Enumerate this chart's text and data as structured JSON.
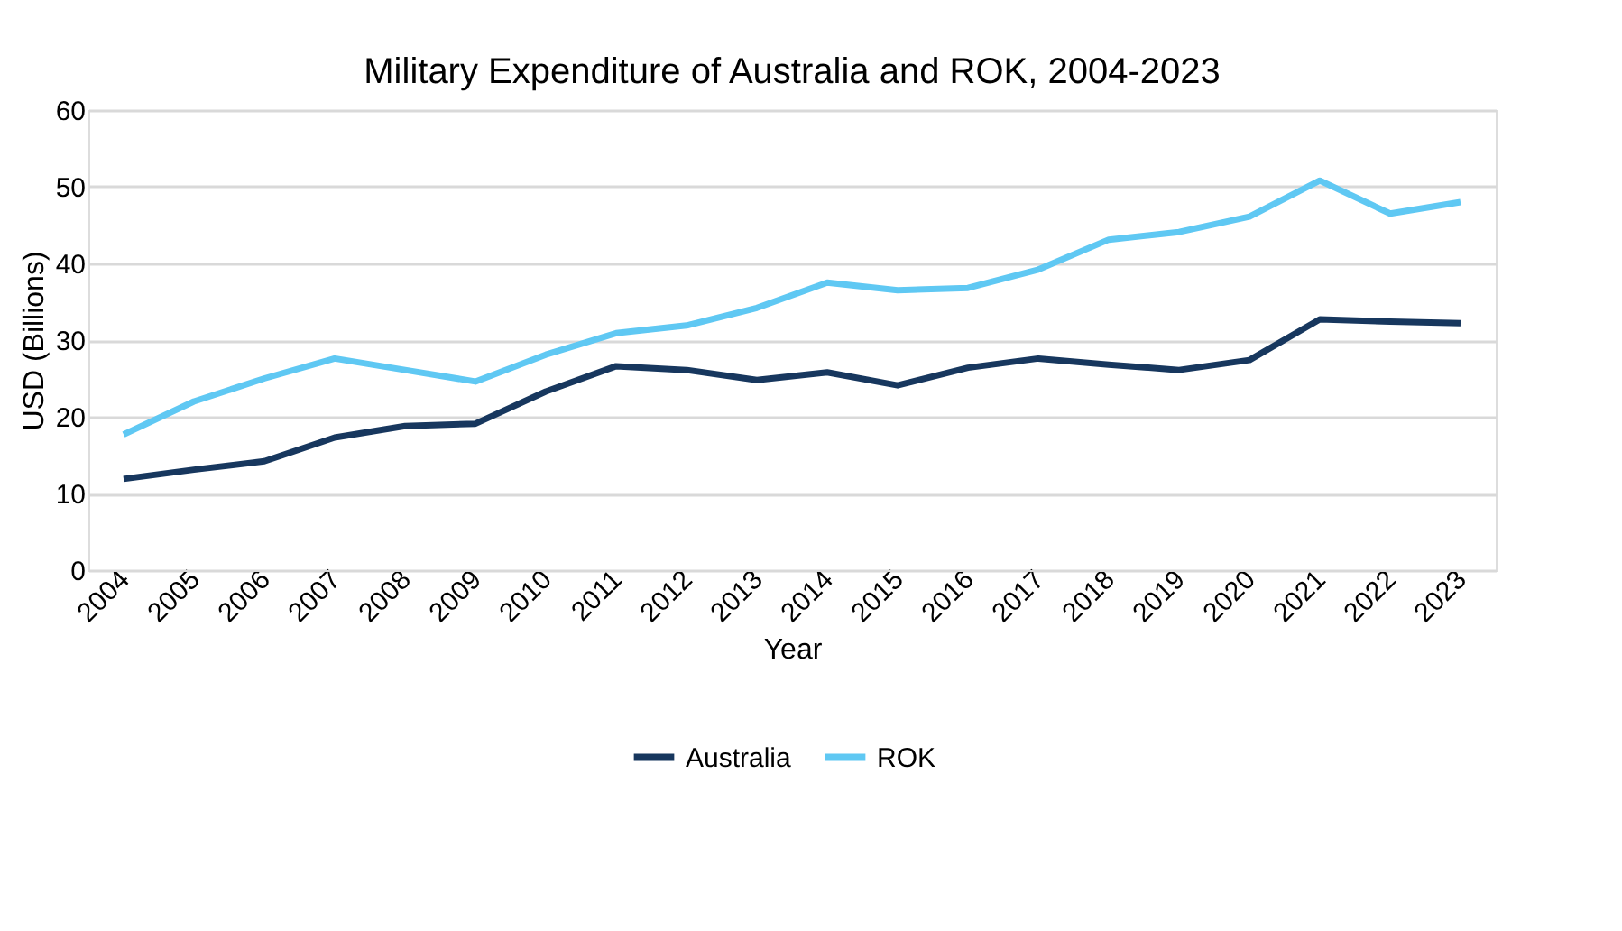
{
  "chart_data": {
    "type": "line",
    "title": "Military Expenditure of Australia and ROK, 2004-2023",
    "xlabel": "Year",
    "ylabel": "USD (Billions)",
    "categories": [
      "2004",
      "2005",
      "2006",
      "2007",
      "2008",
      "2009",
      "2010",
      "2011",
      "2012",
      "2013",
      "2014",
      "2015",
      "2016",
      "2017",
      "2018",
      "2019",
      "2020",
      "2021",
      "2022",
      "2023"
    ],
    "series": [
      {
        "name": "Australia",
        "color": "#17375e",
        "values": [
          11.9,
          13.1,
          14.2,
          17.3,
          18.8,
          19.1,
          23.3,
          26.6,
          26.1,
          24.8,
          25.8,
          24.1,
          26.4,
          27.6,
          26.8,
          26.1,
          27.4,
          32.7,
          32.4,
          32.2
        ]
      },
      {
        "name": "ROK",
        "color": "#5fc8f3",
        "values": [
          17.7,
          22.0,
          25.0,
          27.6,
          26.1,
          24.6,
          28.1,
          30.9,
          31.9,
          34.2,
          37.5,
          36.5,
          36.8,
          39.2,
          43.1,
          44.1,
          46.1,
          50.8,
          46.5,
          48.0
        ]
      }
    ],
    "ylim": [
      0,
      60
    ],
    "yticks": [
      0,
      10,
      20,
      30,
      40,
      50,
      60
    ],
    "grid": "y",
    "legend": "bottom",
    "marker": "none",
    "line_style": "solid"
  }
}
